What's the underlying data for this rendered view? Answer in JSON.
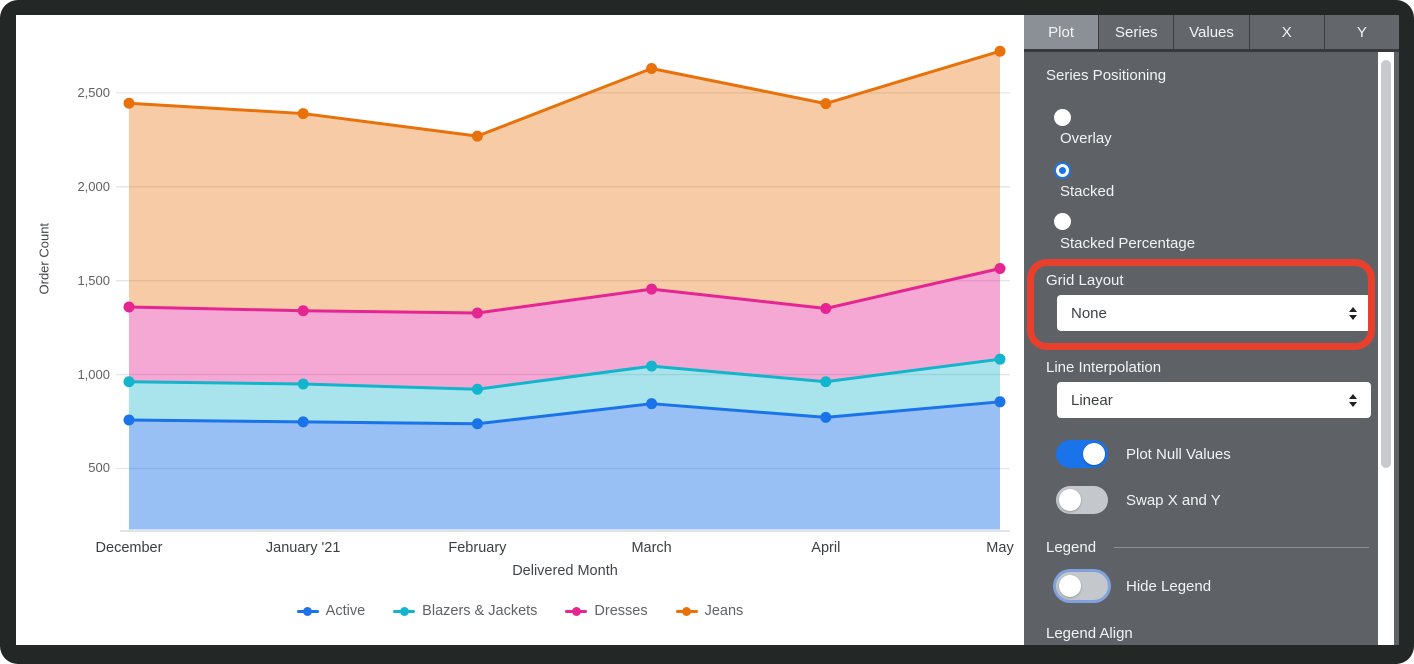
{
  "chart_data": {
    "type": "area",
    "stacked": true,
    "title": "",
    "xlabel": "Delivered Month",
    "ylabel": "Order Count",
    "categories": [
      "December",
      "January '21",
      "February",
      "March",
      "April",
      "May"
    ],
    "series": [
      {
        "name": "Active",
        "color": "#1a73e8",
        "fill_opacity": 0.45,
        "values": [
          758,
          748,
          738,
          845,
          772,
          855
        ]
      },
      {
        "name": "Blazers & Jackets",
        "color": "#12b5cb",
        "fill_opacity": 0.36,
        "values": [
          204,
          202,
          184,
          200,
          190,
          227
        ]
      },
      {
        "name": "Dresses",
        "color": "#e52592",
        "fill_opacity": 0.4,
        "values": [
          398,
          390,
          406,
          410,
          390,
          483
        ]
      },
      {
        "name": "Jeans",
        "color": "#e8710a",
        "fill_opacity": 0.37,
        "values": [
          1085,
          1050,
          942,
          1175,
          1091,
          1157
        ]
      }
    ],
    "stacked_totals": {
      "Active": [
        758,
        748,
        738,
        845,
        772,
        855
      ],
      "Blazers & Jackets": [
        962,
        950,
        922,
        1045,
        962,
        1082
      ],
      "Dresses": [
        1360,
        1340,
        1328,
        1455,
        1352,
        1565
      ],
      "Jeans": [
        2445,
        2390,
        2270,
        2630,
        2443,
        2722
      ]
    },
    "yticks": [
      500,
      1000,
      1500,
      2000,
      2500
    ],
    "ylim": [
      175,
      2835
    ],
    "grid": true,
    "legend_position": "bottom"
  },
  "panel": {
    "tabs": [
      "Plot",
      "Series",
      "Values",
      "X",
      "Y"
    ],
    "selected_tab": "Plot",
    "series_positioning": {
      "label": "Series Positioning",
      "options": [
        "Overlay",
        "Stacked",
        "Stacked Percentage"
      ],
      "selected": "Stacked"
    },
    "grid_layout": {
      "label": "Grid Layout",
      "value": "None"
    },
    "line_interpolation": {
      "label": "Line Interpolation",
      "value": "Linear"
    },
    "plot_null_values": {
      "label": "Plot Null Values",
      "on": true
    },
    "swap_x_y": {
      "label": "Swap X and Y",
      "on": false
    },
    "legend_section": {
      "label": "Legend"
    },
    "hide_legend": {
      "label": "Hide Legend",
      "on": false
    },
    "legend_align": {
      "label": "Legend Align"
    }
  },
  "annotation": {
    "color": "#e8402c",
    "target": "Grid Layout"
  }
}
